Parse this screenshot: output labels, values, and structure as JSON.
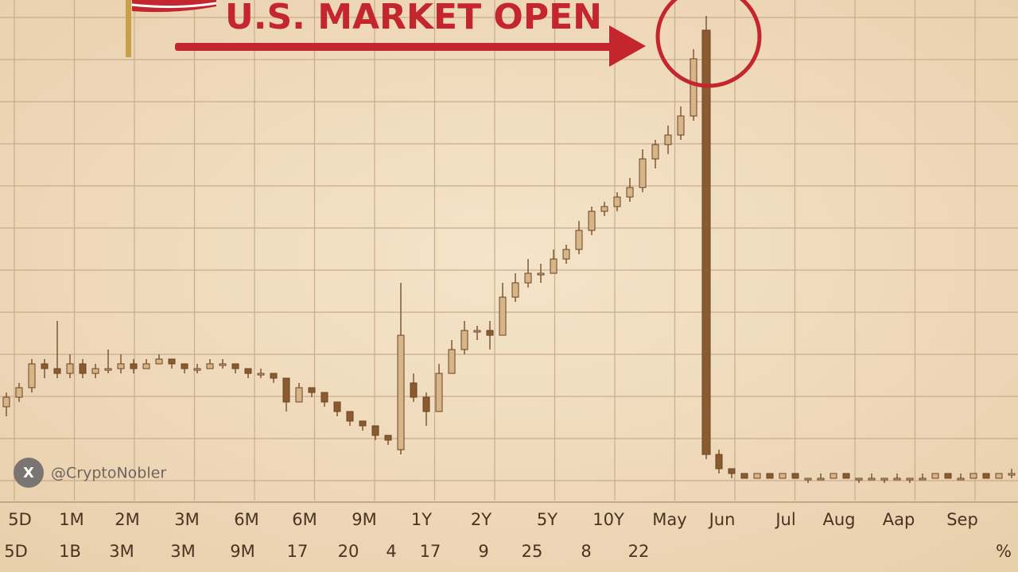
{
  "chart_data": {
    "type": "candlestick",
    "title": "U.S. MARKET OPEN",
    "ohlc": [
      [
        18,
        21,
        16,
        20
      ],
      [
        20,
        23,
        19,
        22
      ],
      [
        22,
        28,
        21,
        27
      ],
      [
        27,
        28,
        24,
        26
      ],
      [
        26,
        36,
        24,
        25
      ],
      [
        25,
        29,
        24,
        27
      ],
      [
        27,
        28,
        24,
        25
      ],
      [
        25,
        27,
        24,
        26
      ],
      [
        26,
        30,
        25,
        26
      ],
      [
        26,
        29,
        25,
        27
      ],
      [
        27,
        28,
        25,
        26
      ],
      [
        26,
        28,
        26,
        27
      ],
      [
        27,
        29,
        27,
        28
      ],
      [
        28,
        28,
        26,
        27
      ],
      [
        27,
        27,
        25,
        26
      ],
      [
        26,
        27,
        25,
        26
      ],
      [
        26,
        28,
        26,
        27
      ],
      [
        27,
        28,
        26,
        27
      ],
      [
        27,
        27,
        25,
        26
      ],
      [
        26,
        26,
        24,
        25
      ],
      [
        25,
        26,
        24,
        25
      ],
      [
        25,
        25,
        23,
        24
      ],
      [
        24,
        24,
        17,
        19
      ],
      [
        19,
        23,
        19,
        22
      ],
      [
        22,
        22,
        20,
        21
      ],
      [
        21,
        21,
        18,
        19
      ],
      [
        19,
        19,
        16,
        17
      ],
      [
        17,
        17,
        14,
        15
      ],
      [
        15,
        15,
        13,
        14
      ],
      [
        14,
        14,
        11,
        12
      ],
      [
        12,
        12,
        10,
        11
      ],
      [
        9,
        44,
        8,
        33
      ],
      [
        23,
        25,
        19,
        20
      ],
      [
        20,
        21,
        14,
        17
      ],
      [
        17,
        27,
        17,
        25
      ],
      [
        25,
        32,
        25,
        30
      ],
      [
        30,
        36,
        29,
        34
      ],
      [
        34,
        35,
        32,
        34
      ],
      [
        34,
        36,
        30,
        33
      ],
      [
        33,
        44,
        33,
        41
      ],
      [
        41,
        46,
        40,
        44
      ],
      [
        44,
        49,
        43,
        46
      ],
      [
        46,
        48,
        44,
        46
      ],
      [
        46,
        51,
        46,
        49
      ],
      [
        49,
        52,
        48,
        51
      ],
      [
        51,
        57,
        50,
        55
      ],
      [
        55,
        60,
        54,
        59
      ],
      [
        59,
        61,
        58,
        60
      ],
      [
        60,
        63,
        59,
        62
      ],
      [
        62,
        66,
        61,
        64
      ],
      [
        64,
        72,
        63,
        70
      ],
      [
        70,
        74,
        68,
        73
      ],
      [
        73,
        77,
        71,
        75
      ],
      [
        75,
        81,
        74,
        79
      ],
      [
        79,
        93,
        78,
        91
      ],
      [
        97,
        100,
        7,
        8
      ],
      [
        8,
        9,
        4,
        5
      ],
      [
        5,
        5,
        3,
        4
      ],
      [
        4,
        4,
        3,
        3
      ],
      [
        3,
        4,
        3,
        4
      ],
      [
        4,
        4,
        3,
        3
      ],
      [
        3,
        4,
        3,
        4
      ],
      [
        4,
        4,
        3,
        3
      ],
      [
        3,
        3,
        2,
        3
      ],
      [
        3,
        4,
        3,
        3
      ],
      [
        3,
        4,
        3,
        4
      ],
      [
        4,
        4,
        3,
        3
      ],
      [
        3,
        3,
        2,
        3
      ],
      [
        3,
        4,
        3,
        3
      ],
      [
        3,
        3,
        2,
        3
      ],
      [
        3,
        4,
        3,
        3
      ],
      [
        3,
        3,
        2,
        3
      ],
      [
        3,
        4,
        3,
        3
      ],
      [
        3,
        4,
        3,
        4
      ],
      [
        4,
        4,
        3,
        3
      ],
      [
        3,
        4,
        3,
        3
      ],
      [
        3,
        4,
        3,
        4
      ],
      [
        4,
        4,
        3,
        3
      ],
      [
        3,
        4,
        3,
        4
      ],
      [
        4,
        5,
        3,
        4
      ]
    ],
    "ylim": [
      0,
      100
    ],
    "up_color": "#d6b688",
    "down_color": "#8a5a30",
    "title_color": "#c4262e",
    "grid": true,
    "x_labels_top": [
      "5D",
      "1M",
      "2M",
      "3M",
      "6M",
      "6M",
      "9M",
      "1Y",
      "2Y",
      "5Y",
      "10Y",
      "May",
      "Jun",
      "Jul",
      "Aug",
      "Aap",
      "Sep"
    ],
    "x_labels_bottom": [
      "5D",
      "1B",
      "3M",
      "3M",
      "9M",
      "17",
      "20",
      "4",
      "17",
      "9",
      "25",
      "8",
      "22",
      "%"
    ],
    "watermark": {
      "icon": "X",
      "handle": "@CryptoNobler"
    }
  }
}
